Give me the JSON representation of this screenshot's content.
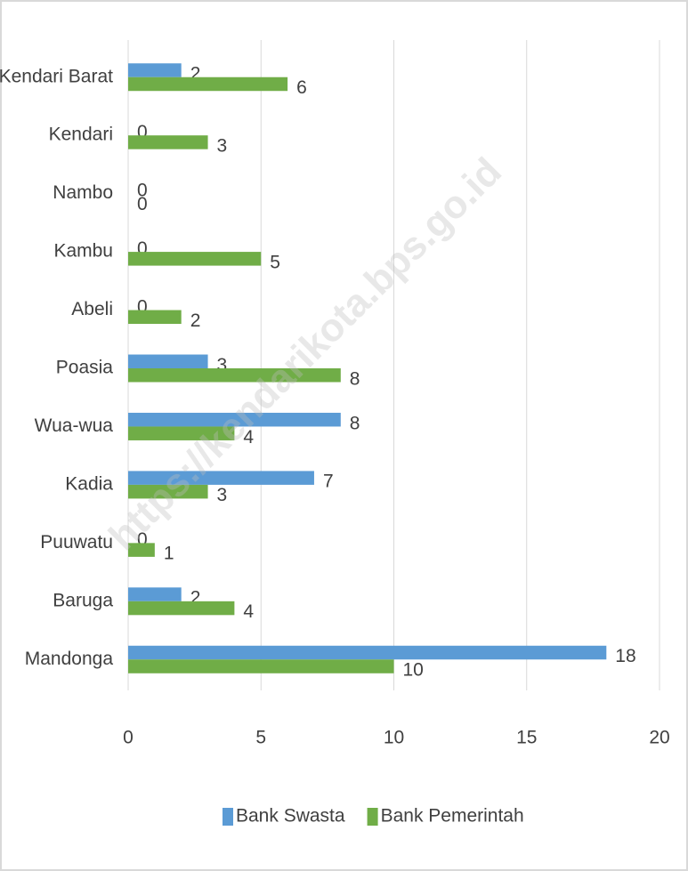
{
  "chart_data": {
    "type": "hbar",
    "categories": [
      "Kendari Barat",
      "Kendari",
      "Nambo",
      "Kambu",
      "Abeli",
      "Poasia",
      "Wua-wua",
      "Kadia",
      "Puuwatu",
      "Baruga",
      "Mandonga"
    ],
    "series": [
      {
        "name": "Bank Swasta",
        "color": "#5b9bd5",
        "values": [
          2,
          0,
          0,
          0,
          0,
          3,
          8,
          7,
          0,
          2,
          18
        ]
      },
      {
        "name": "Bank Pemerintah",
        "color": "#70ad47",
        "values": [
          6,
          3,
          0,
          5,
          2,
          8,
          4,
          3,
          1,
          4,
          10
        ]
      }
    ],
    "xlim": [
      0,
      20
    ],
    "xticks": [
      0,
      5,
      10,
      15,
      20
    ],
    "grid": true,
    "legend": "bottom",
    "watermark": "https://kendarikota.bps.go.id"
  }
}
